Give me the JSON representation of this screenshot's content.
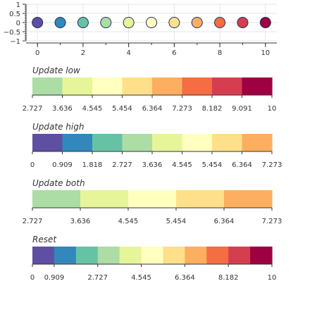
{
  "palette": [
    "#5e4fa2",
    "#3288bd",
    "#66c2a5",
    "#abdda4",
    "#e6f598",
    "#ffffbf",
    "#fee08b",
    "#fdae61",
    "#f46d43",
    "#d53e4f",
    "#9e0142"
  ],
  "chart_data": [
    {
      "type": "scatter",
      "x": [
        0,
        1,
        2,
        3,
        4,
        5,
        6,
        7,
        8,
        9,
        10
      ],
      "y": [
        0,
        0,
        0,
        0,
        0,
        0,
        0,
        0,
        0,
        0,
        0
      ],
      "xlim": [
        -0.5,
        10.5
      ],
      "ylim": [
        -1,
        1
      ],
      "xticks": [
        "0",
        "2",
        "4",
        "6",
        "8",
        "10"
      ],
      "yticks": [
        "1",
        "0.5",
        "0",
        "−0.5",
        "−1"
      ],
      "grid": true
    },
    {
      "type": "colorbar",
      "title": "Update low",
      "low": 2.727,
      "high": 10,
      "colors": [
        "#abdda4",
        "#e6f598",
        "#ffffbf",
        "#fee08b",
        "#fdae61",
        "#f46d43",
        "#d53e4f",
        "#9e0142"
      ],
      "ticks": [
        "2.727",
        "3.636",
        "4.545",
        "5.454",
        "6.364",
        "7.273",
        "8.182",
        "9.091",
        "10"
      ]
    },
    {
      "type": "colorbar",
      "title": "Update high",
      "low": 0,
      "high": 7.273,
      "colors": [
        "#5e4fa2",
        "#3288bd",
        "#66c2a5",
        "#abdda4",
        "#e6f598",
        "#ffffbf",
        "#fee08b",
        "#fdae61"
      ],
      "ticks": [
        "0",
        "0.909",
        "1.818",
        "2.727",
        "3.636",
        "4.545",
        "5.454",
        "6.364",
        "7.273"
      ]
    },
    {
      "type": "colorbar",
      "title": "Update both",
      "low": 2.727,
      "high": 7.273,
      "colors": [
        "#abdda4",
        "#e6f598",
        "#ffffbf",
        "#fee08b",
        "#fdae61"
      ],
      "ticks": [
        "2.727",
        "3.636",
        "4.545",
        "5.454",
        "6.364",
        "7.273"
      ]
    },
    {
      "type": "colorbar",
      "title": "Reset",
      "low": 0,
      "high": 10,
      "colors": [
        "#5e4fa2",
        "#3288bd",
        "#66c2a5",
        "#abdda4",
        "#e6f598",
        "#ffffbf",
        "#fee08b",
        "#fdae61",
        "#f46d43",
        "#d53e4f",
        "#9e0142"
      ],
      "ticks": [
        "0",
        "0.909",
        "2.727",
        "4.545",
        "6.364",
        "8.182",
        "10"
      ]
    }
  ]
}
